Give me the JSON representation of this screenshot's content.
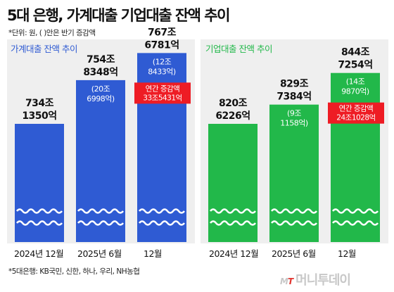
{
  "title": "5대 은행, 가계대출 기업대출 잔액 추이",
  "unit_note": "*단위: 원, ( )안은 반기 증감액",
  "footnote": "*5대은행: KB국민, 신한, 하나, 우리, NH농협",
  "logo": {
    "prefix_m": "M",
    "prefix_t": "T",
    "text": "머니투데이"
  },
  "colors": {
    "household": "#2f5bd3",
    "corporate": "#22b84a",
    "highlight": "#ee1c24",
    "panel": "#efefef"
  },
  "chart_data": [
    {
      "type": "bar",
      "title": "가계대출 잔액 추이",
      "categories": [
        "2024년 12월",
        "2025년 6월",
        "12월"
      ],
      "values": [
        734.135,
        754.8348,
        767.6781
      ],
      "value_labels": [
        {
          "top": "734조",
          "bottom": "1350억"
        },
        {
          "top": "754조",
          "bottom": "8348억"
        },
        {
          "top": "767조",
          "bottom": "6781억"
        }
      ],
      "changes": [
        "",
        "(20조\n6998억)",
        "(12조\n8433억)"
      ],
      "annotation": {
        "category": "12월",
        "label": "연간 증감액",
        "value": "33조5431억"
      },
      "axis": "broken"
    },
    {
      "type": "bar",
      "title": "기업대출 잔액 추이",
      "categories": [
        "2024년 12월",
        "2025년 6월",
        "12월"
      ],
      "values": [
        820.6226,
        829.7384,
        844.7254
      ],
      "value_labels": [
        {
          "top": "820조",
          "bottom": "6226억"
        },
        {
          "top": "829조",
          "bottom": "7384억"
        },
        {
          "top": "844조",
          "bottom": "7254억"
        }
      ],
      "changes": [
        "",
        "(9조\n1158억)",
        "(14조\n9870억)"
      ],
      "annotation": {
        "category": "12월",
        "label": "연간 증감액",
        "value": "24조1028억"
      },
      "axis": "broken"
    }
  ]
}
